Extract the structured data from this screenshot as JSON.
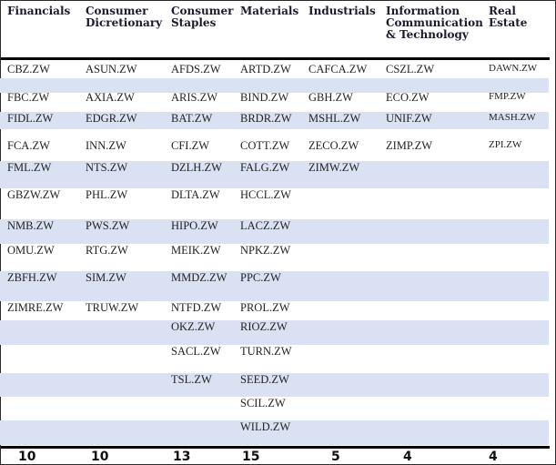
{
  "columns": [
    {
      "key": "fin",
      "header": [
        "Financials"
      ],
      "count": "10",
      "items": [
        "CBZ.ZW",
        "FBC.ZW",
        "FIDL.ZW",
        "FCA.ZW",
        "FML.ZW",
        "GBZW.ZW",
        "NMB.ZW",
        "OMU.ZW",
        "ZBFH.ZW",
        "ZIMRE.ZW"
      ]
    },
    {
      "key": "cd",
      "header": [
        "Consumer",
        "Dicretionary"
      ],
      "count": "10",
      "items": [
        "ASUN.ZW",
        "AXIA.ZW",
        "EDGR.ZW",
        "INN.ZW",
        "NTS.ZW",
        "PHL.ZW",
        "PWS.ZW",
        "RTG.ZW",
        "SIM.ZW",
        "TRUW.ZW"
      ]
    },
    {
      "key": "cs",
      "header": [
        "Consumer",
        "Staples"
      ],
      "count": "13",
      "items": [
        "AFDS.ZW",
        "ARIS.ZW",
        "BAT.ZW",
        "CFI.ZW",
        "DZLH.ZW",
        "DLTA.ZW",
        "HIPO.ZW",
        "MEIK.ZW",
        "MMDZ.ZW",
        "NTFD.ZW",
        "OKZ.ZW",
        "SACL.ZW",
        "TSL.ZW"
      ]
    },
    {
      "key": "mat",
      "header": [
        "Materials"
      ],
      "count": "15",
      "items": [
        "ARTD.ZW",
        "BIND.ZW",
        "BRDR.ZW",
        "COTT.ZW",
        "FALG.ZW",
        "HCCL.ZW",
        "LACZ.ZW",
        "NPKZ.ZW",
        "PPC.ZW",
        "PROL.ZW",
        "RIOZ.ZW",
        "TURN.ZW",
        "SEED.ZW",
        "SCIL.ZW",
        "WILD.ZW"
      ]
    },
    {
      "key": "ind",
      "header": [
        "Industrials"
      ],
      "count": "5",
      "items": [
        "CAFCA.ZW",
        "GBH.ZW",
        "MSHL.ZW",
        "ZECO.ZW",
        "ZIMW.ZW"
      ]
    },
    {
      "key": "ict",
      "header": [
        "Information",
        "Communication",
        "& Technology"
      ],
      "count": "4",
      "items": [
        "CSZL.ZW",
        "ECO.ZW",
        "UNIF.ZW",
        "ZIMP.ZW"
      ]
    },
    {
      "key": "re",
      "header": [
        "Real",
        "Estate"
      ],
      "count": "4",
      "items": [
        "DAWN.ZW",
        "FMP.ZW",
        "MASH.ZW",
        "ZPI.ZW"
      ]
    }
  ]
}
